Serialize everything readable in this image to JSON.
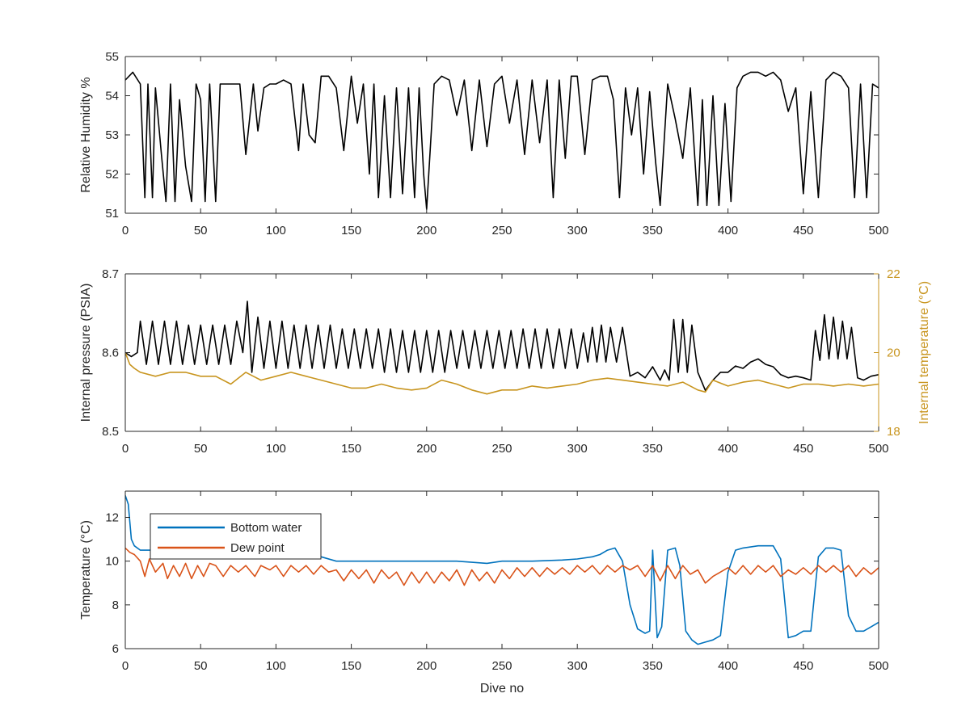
{
  "chart_data": [
    {
      "type": "line",
      "panel": "top",
      "title": "",
      "xlabel": "",
      "ylabel": "Relative Humidity %",
      "xlim": [
        0,
        500
      ],
      "ylim": [
        51,
        55
      ],
      "xticks": [
        0,
        50,
        100,
        150,
        200,
        250,
        300,
        350,
        400,
        450,
        500
      ],
      "yticks": [
        51,
        52,
        53,
        54,
        55
      ],
      "grid": false,
      "series": [
        {
          "color": "#000000",
          "axis": "left",
          "x": [
            0,
            5,
            10,
            13,
            15,
            18,
            20,
            24,
            27,
            30,
            33,
            36,
            40,
            44,
            47,
            50,
            53,
            56,
            60,
            63,
            70,
            76,
            80,
            85,
            88,
            92,
            96,
            100,
            105,
            110,
            115,
            118,
            122,
            126,
            130,
            135,
            140,
            145,
            150,
            154,
            158,
            162,
            165,
            168,
            172,
            176,
            180,
            184,
            188,
            192,
            195,
            198,
            200,
            205,
            210,
            215,
            220,
            225,
            230,
            235,
            240,
            245,
            250,
            255,
            260,
            265,
            270,
            275,
            280,
            284,
            288,
            292,
            296,
            300,
            305,
            310,
            315,
            320,
            324,
            328,
            332,
            336,
            340,
            344,
            348,
            352,
            355,
            360,
            365,
            370,
            375,
            380,
            383,
            386,
            390,
            394,
            398,
            402,
            406,
            410,
            415,
            420,
            425,
            430,
            435,
            440,
            445,
            450,
            455,
            460,
            465,
            470,
            475,
            480,
            484,
            488,
            492,
            496,
            500
          ],
          "y": [
            54.4,
            54.6,
            54.3,
            51.4,
            54.3,
            51.4,
            54.2,
            52.5,
            51.3,
            54.3,
            51.3,
            53.9,
            52.2,
            51.3,
            54.3,
            53.9,
            51.3,
            54.3,
            51.3,
            54.3,
            54.3,
            54.3,
            52.5,
            54.3,
            53.1,
            54.2,
            54.3,
            54.3,
            54.4,
            54.3,
            52.6,
            54.3,
            53.0,
            52.8,
            54.5,
            54.5,
            54.2,
            52.6,
            54.5,
            53.3,
            54.3,
            52.0,
            54.3,
            51.4,
            54.0,
            51.4,
            54.2,
            51.5,
            54.2,
            51.4,
            54.2,
            52.0,
            51.1,
            54.3,
            54.5,
            54.4,
            53.5,
            54.4,
            52.6,
            54.4,
            52.7,
            54.3,
            54.5,
            53.3,
            54.4,
            52.5,
            54.4,
            52.8,
            54.4,
            51.4,
            54.4,
            52.4,
            54.5,
            54.5,
            52.5,
            54.4,
            54.5,
            54.5,
            53.9,
            51.4,
            54.2,
            53.0,
            54.2,
            52.0,
            54.1,
            52.3,
            51.2,
            54.3,
            53.4,
            52.4,
            54.2,
            51.2,
            53.9,
            51.2,
            54.0,
            51.2,
            53.8,
            51.3,
            54.2,
            54.5,
            54.6,
            54.6,
            54.5,
            54.6,
            54.4,
            53.6,
            54.2,
            51.5,
            54.1,
            51.4,
            54.4,
            54.6,
            54.5,
            54.2,
            51.4,
            54.3,
            51.4,
            54.3,
            54.2
          ]
        }
      ]
    },
    {
      "type": "line",
      "panel": "middle",
      "title": "",
      "xlabel": "",
      "ylabel": "Internal pressure (PSIA)",
      "ylabel_right": "Internal temperature (°C)",
      "xlim": [
        0,
        500
      ],
      "ylim": [
        8.5,
        8.7
      ],
      "ylim_right": [
        18,
        22
      ],
      "xticks": [
        0,
        50,
        100,
        150,
        200,
        250,
        300,
        350,
        400,
        450,
        500
      ],
      "yticks": [
        8.5,
        8.6,
        8.7
      ],
      "yticks_right": [
        18,
        20,
        22
      ],
      "grid": false,
      "series": [
        {
          "color": "#000000",
          "axis": "left",
          "x": [
            0,
            4,
            8,
            10,
            14,
            18,
            22,
            26,
            30,
            34,
            38,
            42,
            46,
            50,
            54,
            58,
            62,
            66,
            70,
            74,
            78,
            81,
            84,
            88,
            92,
            96,
            100,
            104,
            108,
            112,
            116,
            120,
            124,
            128,
            132,
            136,
            140,
            144,
            148,
            152,
            156,
            160,
            164,
            168,
            172,
            176,
            180,
            184,
            188,
            192,
            196,
            200,
            204,
            208,
            212,
            216,
            220,
            224,
            228,
            232,
            236,
            240,
            244,
            248,
            252,
            256,
            260,
            264,
            268,
            272,
            276,
            280,
            284,
            288,
            292,
            296,
            300,
            304,
            307,
            310,
            313,
            316,
            319,
            322,
            326,
            330,
            335,
            340,
            345,
            350,
            355,
            358,
            361,
            364,
            367,
            370,
            373,
            376,
            380,
            385,
            390,
            395,
            400,
            405,
            410,
            415,
            420,
            425,
            430,
            435,
            440,
            445,
            450,
            455,
            458,
            461,
            464,
            467,
            470,
            473,
            476,
            479,
            482,
            486,
            490,
            495,
            500
          ],
          "y": [
            8.6,
            8.595,
            8.6,
            8.64,
            8.585,
            8.64,
            8.585,
            8.64,
            8.585,
            8.64,
            8.585,
            8.635,
            8.585,
            8.635,
            8.585,
            8.635,
            8.585,
            8.635,
            8.585,
            8.64,
            8.6,
            8.665,
            8.575,
            8.645,
            8.58,
            8.64,
            8.58,
            8.64,
            8.58,
            8.635,
            8.58,
            8.635,
            8.58,
            8.635,
            8.58,
            8.635,
            8.58,
            8.63,
            8.58,
            8.63,
            8.58,
            8.63,
            8.58,
            8.63,
            8.575,
            8.63,
            8.575,
            8.628,
            8.575,
            8.628,
            8.575,
            8.628,
            8.575,
            8.628,
            8.575,
            8.628,
            8.58,
            8.628,
            8.58,
            8.628,
            8.58,
            8.628,
            8.58,
            8.628,
            8.58,
            8.628,
            8.58,
            8.63,
            8.58,
            8.63,
            8.58,
            8.63,
            8.58,
            8.63,
            8.58,
            8.63,
            8.58,
            8.625,
            8.588,
            8.632,
            8.588,
            8.635,
            8.588,
            8.632,
            8.588,
            8.632,
            8.57,
            8.575,
            8.568,
            8.582,
            8.565,
            8.578,
            8.565,
            8.642,
            8.575,
            8.642,
            8.575,
            8.635,
            8.575,
            8.552,
            8.565,
            8.575,
            8.575,
            8.583,
            8.58,
            8.588,
            8.592,
            8.585,
            8.582,
            8.572,
            8.568,
            8.57,
            8.568,
            8.565,
            8.628,
            8.59,
            8.648,
            8.592,
            8.645,
            8.592,
            8.64,
            8.592,
            8.632,
            8.568,
            8.565,
            8.57,
            8.572
          ]
        },
        {
          "color": "#C8951F",
          "axis": "right",
          "x": [
            0,
            3,
            6,
            10,
            20,
            30,
            40,
            50,
            60,
            70,
            80,
            85,
            90,
            100,
            110,
            120,
            130,
            140,
            150,
            160,
            170,
            180,
            190,
            200,
            210,
            220,
            230,
            240,
            250,
            260,
            270,
            280,
            290,
            300,
            310,
            320,
            330,
            340,
            350,
            360,
            370,
            380,
            385,
            390,
            400,
            410,
            420,
            430,
            440,
            450,
            460,
            470,
            480,
            490,
            500
          ],
          "y": [
            20.0,
            19.7,
            19.6,
            19.5,
            19.4,
            19.5,
            19.5,
            19.4,
            19.4,
            19.2,
            19.5,
            19.4,
            19.3,
            19.4,
            19.5,
            19.4,
            19.3,
            19.2,
            19.1,
            19.1,
            19.2,
            19.1,
            19.05,
            19.1,
            19.3,
            19.2,
            19.05,
            18.95,
            19.05,
            19.05,
            19.15,
            19.1,
            19.15,
            19.2,
            19.3,
            19.35,
            19.3,
            19.25,
            19.2,
            19.15,
            19.25,
            19.05,
            19.0,
            19.3,
            19.15,
            19.25,
            19.3,
            19.2,
            19.1,
            19.2,
            19.2,
            19.15,
            19.2,
            19.15,
            19.2
          ]
        }
      ]
    },
    {
      "type": "line",
      "panel": "bottom",
      "title": "",
      "xlabel": "Dive no",
      "ylabel": "Temperature (°C)",
      "xlim": [
        0,
        500
      ],
      "ylim": [
        6,
        13.2
      ],
      "xticks": [
        0,
        50,
        100,
        150,
        200,
        250,
        300,
        350,
        400,
        450,
        500
      ],
      "yticks": [
        6,
        8,
        10,
        12
      ],
      "grid": false,
      "legend": {
        "placement": "top-left",
        "entries": [
          "Bottom water",
          "Dew point"
        ]
      },
      "series": [
        {
          "name": "Bottom water",
          "color": "#0072BD",
          "axis": "left",
          "x": [
            0,
            2,
            4,
            6,
            10,
            20,
            30,
            50,
            70,
            100,
            120,
            130,
            140,
            150,
            170,
            200,
            220,
            240,
            250,
            270,
            290,
            300,
            310,
            315,
            320,
            325,
            330,
            335,
            340,
            345,
            348,
            350,
            353,
            356,
            360,
            365,
            368,
            372,
            376,
            380,
            385,
            390,
            395,
            400,
            405,
            410,
            420,
            430,
            435,
            440,
            445,
            450,
            455,
            460,
            465,
            470,
            475,
            480,
            485,
            490,
            495,
            500
          ],
          "y": [
            13.0,
            12.6,
            11.0,
            10.7,
            10.5,
            10.5,
            10.6,
            10.5,
            10.5,
            10.4,
            10.3,
            10.2,
            10.0,
            10.0,
            10.0,
            10.0,
            10.0,
            9.9,
            10.0,
            10.0,
            10.05,
            10.1,
            10.2,
            10.3,
            10.5,
            10.6,
            10.0,
            8.0,
            6.9,
            6.7,
            6.8,
            10.5,
            6.5,
            7.0,
            10.5,
            10.6,
            9.8,
            6.8,
            6.4,
            6.2,
            6.3,
            6.4,
            6.6,
            9.5,
            10.5,
            10.6,
            10.7,
            10.7,
            10.1,
            6.5,
            6.6,
            6.8,
            6.8,
            10.2,
            10.6,
            10.6,
            10.5,
            7.5,
            6.8,
            6.8,
            7.0,
            7.2
          ]
        },
        {
          "name": "Dew point",
          "color": "#D95319",
          "axis": "left",
          "x": [
            0,
            3,
            6,
            10,
            13,
            16,
            20,
            25,
            28,
            32,
            36,
            40,
            44,
            48,
            52,
            56,
            60,
            65,
            70,
            75,
            80,
            86,
            90,
            96,
            100,
            105,
            110,
            115,
            120,
            125,
            130,
            135,
            140,
            145,
            150,
            155,
            160,
            165,
            170,
            175,
            180,
            185,
            190,
            195,
            200,
            205,
            210,
            215,
            220,
            225,
            230,
            235,
            240,
            245,
            250,
            255,
            260,
            265,
            270,
            275,
            280,
            285,
            290,
            295,
            300,
            305,
            310,
            315,
            320,
            325,
            330,
            335,
            340,
            345,
            350,
            355,
            360,
            365,
            370,
            375,
            380,
            385,
            390,
            395,
            400,
            405,
            410,
            415,
            420,
            425,
            430,
            435,
            440,
            445,
            450,
            455,
            460,
            465,
            470,
            475,
            480,
            485,
            490,
            495,
            500
          ],
          "y": [
            10.6,
            10.4,
            10.3,
            10.0,
            9.3,
            10.1,
            9.5,
            9.9,
            9.2,
            9.8,
            9.3,
            9.9,
            9.2,
            9.8,
            9.3,
            9.9,
            9.8,
            9.3,
            9.8,
            9.5,
            9.8,
            9.3,
            9.8,
            9.6,
            9.8,
            9.3,
            9.8,
            9.5,
            9.8,
            9.4,
            9.8,
            9.5,
            9.6,
            9.1,
            9.6,
            9.2,
            9.6,
            9.0,
            9.6,
            9.2,
            9.5,
            8.9,
            9.5,
            9.0,
            9.5,
            9.0,
            9.5,
            9.1,
            9.6,
            8.9,
            9.6,
            9.1,
            9.5,
            9.0,
            9.6,
            9.2,
            9.7,
            9.3,
            9.7,
            9.3,
            9.7,
            9.4,
            9.7,
            9.4,
            9.8,
            9.5,
            9.8,
            9.4,
            9.8,
            9.5,
            9.8,
            9.6,
            9.8,
            9.3,
            9.8,
            9.1,
            9.8,
            9.2,
            9.8,
            9.4,
            9.6,
            9.0,
            9.3,
            9.5,
            9.7,
            9.4,
            9.8,
            9.4,
            9.8,
            9.5,
            9.8,
            9.3,
            9.6,
            9.4,
            9.7,
            9.4,
            9.8,
            9.5,
            9.8,
            9.5,
            9.8,
            9.3,
            9.7,
            9.4,
            9.7
          ]
        }
      ]
    }
  ]
}
